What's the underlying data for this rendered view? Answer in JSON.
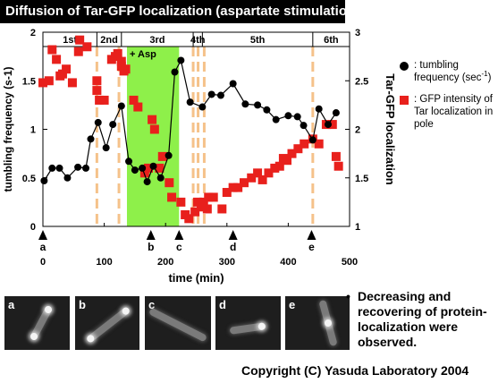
{
  "title": "Diffusion of Tar-GFP localization (aspartate stimulation)",
  "chart_data": {
    "type": "scatter",
    "title": "Diffusion of Tar-GFP localization (aspartate stimulation)",
    "xlabel": "time (min)",
    "ylabel_left": "tumbling frequency (s-1)",
    "ylabel_right": "Tar-GFP localization",
    "xlim": [
      0,
      500
    ],
    "ylim_left": [
      0,
      2
    ],
    "ylim_right": [
      1,
      3
    ],
    "x_ticks": [
      "0",
      "100",
      "200",
      "300",
      "400",
      "500"
    ],
    "y_left_ticks": [
      "0",
      "0.5",
      "1",
      "1.5",
      "2"
    ],
    "y_right_ticks": [
      "1",
      "1.5",
      "2",
      "2.5",
      "3"
    ],
    "grid": false,
    "legend_position": "right",
    "colors": {
      "tumbling": "#000000",
      "gfp": "#e8201c",
      "asp_band": "#8ef04a",
      "dashed": "#f5c28a"
    },
    "legend": [
      {
        "marker": "circle",
        "text": ": tumbling frequency (sec",
        "sup": "-1",
        "tail": ")"
      },
      {
        "marker": "square",
        "text": ": GFP intensity of Tar localization in pole"
      }
    ],
    "phases": [
      {
        "label": "1st",
        "start": 0,
        "end": 88
      },
      {
        "label": "2nd",
        "start": 88,
        "end": 128
      },
      {
        "label": "3rd",
        "start": 128,
        "end": 245
      },
      {
        "label": "4th",
        "start": 245,
        "end": 260
      },
      {
        "label": "5th",
        "start": 260,
        "end": 440
      },
      {
        "label": "6th",
        "start": 440,
        "end": 500
      }
    ],
    "dashed_lines": [
      88,
      124,
      245,
      253,
      263,
      440
    ],
    "asp_window": {
      "label": "+ Asp",
      "start": 137,
      "end": 222
    },
    "markers": [
      {
        "label": "a",
        "x": 0
      },
      {
        "label": "b",
        "x": 176
      },
      {
        "label": "c",
        "x": 222
      },
      {
        "label": "d",
        "x": 310
      },
      {
        "label": "e",
        "x": 438
      }
    ],
    "series": [
      {
        "name": "tumbling frequency (sec-1)",
        "axis": "left",
        "x": [
          2,
          15,
          27,
          40,
          57,
          70,
          78,
          90,
          103,
          114,
          128,
          140,
          150,
          162,
          170,
          180,
          192,
          205,
          215,
          225,
          240,
          260,
          275,
          290,
          310,
          330,
          350,
          365,
          380,
          400,
          415,
          425,
          440,
          450,
          465,
          478
        ],
        "values": [
          0.47,
          0.6,
          0.6,
          0.5,
          0.61,
          0.6,
          0.9,
          1.07,
          0.81,
          1.05,
          1.24,
          0.67,
          0.58,
          0.6,
          0.46,
          0.62,
          0.5,
          0.73,
          1.59,
          1.71,
          1.28,
          1.23,
          1.36,
          1.35,
          1.47,
          1.26,
          1.25,
          1.2,
          1.1,
          1.14,
          1.13,
          1.04,
          0.89,
          1.21,
          1.05,
          1.17
        ]
      },
      {
        "name": "GFP intensity of Tar localization in pole",
        "axis": "right",
        "x": [
          0,
          10,
          15,
          22,
          28,
          32,
          38,
          48,
          58,
          60,
          72,
          88,
          88,
          92,
          100,
          112,
          118,
          122,
          128,
          128,
          132,
          135,
          148,
          155,
          166,
          172,
          178,
          182,
          190,
          195,
          206,
          210,
          225,
          232,
          238,
          248,
          252,
          258,
          262,
          268,
          270,
          278,
          292,
          300,
          310,
          318,
          328,
          340,
          350,
          358,
          368,
          378,
          386,
          392,
          398,
          406,
          416,
          426,
          440,
          450,
          462,
          472,
          478,
          482
        ],
        "values": [
          2.48,
          2.5,
          2.82,
          2.72,
          2.55,
          2.57,
          2.62,
          2.48,
          2.8,
          2.92,
          2.85,
          2.5,
          2.4,
          2.3,
          2.3,
          2.72,
          2.75,
          2.78,
          2.7,
          2.65,
          2.6,
          2.62,
          2.3,
          2.23,
          1.55,
          1.6,
          2.1,
          2.0,
          1.6,
          1.72,
          1.45,
          1.3,
          1.25,
          1.12,
          1.08,
          1.15,
          1.25,
          1.2,
          1.25,
          1.18,
          1.3,
          1.3,
          1.18,
          1.35,
          1.4,
          1.4,
          1.45,
          1.5,
          1.55,
          1.48,
          1.55,
          1.6,
          1.62,
          1.7,
          1.68,
          1.75,
          1.8,
          1.85,
          1.9,
          1.85,
          2.05,
          2.05,
          1.72,
          1.62
        ]
      }
    ]
  },
  "micrographs": [
    {
      "label": "a"
    },
    {
      "label": "b"
    },
    {
      "label": "c"
    },
    {
      "label": "d"
    },
    {
      "label": "e"
    }
  ],
  "note": {
    "bullet": "•",
    "text": "Decreasing and recovering of protein-localization were observed."
  },
  "copyright": "Copyright (C) Yasuda Laboratory 2004"
}
